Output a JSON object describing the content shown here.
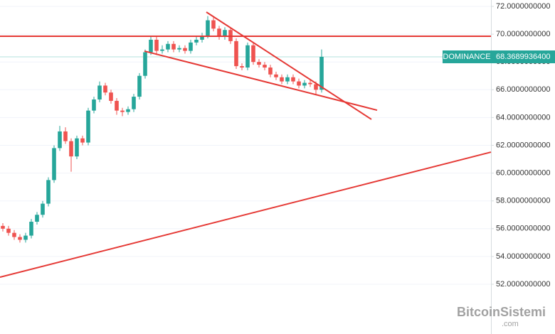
{
  "chart_data": {
    "type": "candlestick",
    "categories": [
      null,
      null,
      null,
      null,
      null,
      null,
      null,
      null,
      null,
      null,
      null,
      null,
      null,
      null,
      null,
      null,
      null,
      null,
      null,
      null,
      null,
      null,
      null,
      null,
      null,
      null,
      null,
      null,
      null,
      null,
      null,
      null,
      null,
      null,
      null,
      null,
      null,
      null,
      null,
      null,
      null,
      null,
      null,
      null,
      null,
      null,
      null,
      null,
      null,
      null,
      null,
      null,
      null,
      null,
      null,
      null,
      null
    ],
    "open": [
      56.2,
      56.0,
      55.7,
      55.4,
      55.2,
      55.5,
      56.5,
      57.0,
      57.8,
      59.5,
      61.8,
      63.0,
      62.3,
      61.2,
      62.5,
      62.2,
      64.5,
      65.3,
      66.3,
      65.8,
      65.2,
      64.5,
      64.4,
      64.6,
      65.5,
      67.0,
      68.7,
      69.6,
      68.8,
      68.9,
      69.3,
      68.9,
      69.0,
      68.8,
      69.4,
      69.6,
      69.9,
      71.0,
      70.4,
      69.8,
      70.3,
      69.5,
      67.7,
      67.6,
      69.2,
      68.0,
      67.8,
      67.6,
      67.1,
      66.9,
      66.6,
      66.9,
      66.6,
      66.3,
      66.5,
      66.4,
      66.0
    ],
    "high": [
      56.4,
      56.2,
      55.9,
      55.6,
      55.7,
      56.7,
      57.2,
      58.0,
      59.7,
      62.0,
      63.4,
      63.3,
      62.5,
      62.7,
      62.7,
      64.7,
      65.5,
      66.6,
      66.5,
      66.0,
      65.4,
      64.7,
      64.8,
      65.7,
      67.2,
      68.9,
      69.9,
      69.8,
      69.2,
      69.5,
      69.5,
      69.2,
      69.2,
      69.6,
      69.8,
      70.1,
      71.3,
      71.2,
      70.6,
      70.5,
      70.5,
      69.7,
      67.9,
      69.4,
      69.4,
      68.2,
      68.0,
      67.8,
      67.3,
      67.1,
      67.1,
      67.1,
      66.8,
      66.7,
      66.7,
      66.6,
      68.9
    ],
    "low": [
      55.8,
      55.5,
      55.2,
      55.0,
      55.0,
      55.3,
      56.3,
      56.8,
      57.6,
      59.3,
      61.6,
      62.1,
      60.1,
      61.0,
      62.0,
      62.0,
      64.3,
      65.1,
      65.6,
      65.0,
      64.2,
      64.1,
      64.2,
      64.4,
      65.3,
      66.8,
      68.5,
      68.5,
      68.6,
      68.7,
      68.7,
      68.7,
      68.6,
      68.6,
      69.2,
      69.4,
      69.7,
      70.2,
      69.6,
      69.6,
      69.3,
      67.5,
      67.4,
      67.4,
      67.8,
      67.6,
      67.4,
      66.9,
      66.7,
      66.4,
      66.4,
      66.4,
      66.1,
      66.1,
      66.2,
      65.6,
      65.8
    ],
    "close": [
      56.0,
      55.7,
      55.4,
      55.2,
      55.5,
      56.5,
      57.0,
      57.8,
      59.5,
      61.8,
      63.0,
      62.3,
      61.2,
      62.5,
      62.2,
      64.5,
      65.3,
      66.3,
      65.8,
      65.2,
      64.5,
      64.4,
      64.6,
      65.5,
      67.0,
      68.7,
      69.6,
      68.8,
      68.9,
      69.3,
      68.9,
      69.0,
      68.8,
      69.4,
      69.6,
      69.9,
      71.0,
      70.4,
      69.8,
      70.3,
      69.5,
      67.7,
      67.6,
      69.2,
      68.0,
      67.8,
      67.6,
      67.1,
      66.9,
      66.6,
      66.9,
      66.6,
      66.3,
      66.5,
      66.4,
      66.0,
      68.36899364
    ],
    "up_color": "#26a69a",
    "down_color": "#ef5350",
    "xlim": [
      -0.5,
      85.75
    ],
    "ylim": [
      48.42,
      72.46
    ],
    "yticks": [
      {
        "value": 52,
        "label": "52.0000000000"
      },
      {
        "value": 54,
        "label": "54.0000000000"
      },
      {
        "value": 56,
        "label": "56.0000000000"
      },
      {
        "value": 58,
        "label": "58.0000000000"
      },
      {
        "value": 60,
        "label": "60.0000000000"
      },
      {
        "value": 62,
        "label": "62.0000000000"
      },
      {
        "value": 64,
        "label": "64.0000000000"
      },
      {
        "value": 66,
        "label": "66.0000000000"
      },
      {
        "value": 68,
        "label": "68.0000000000"
      },
      {
        "value": 70,
        "label": "70.0000000000"
      },
      {
        "value": 72,
        "label": "72.0000000000"
      }
    ],
    "grid": true,
    "last_price": {
      "name": "DOMINANCE",
      "value": 68.36899364,
      "label": "68.3689936400",
      "color": "#26a69a"
    },
    "lines": [
      {
        "x": [
          -0.5,
          85.75
        ],
        "y": [
          69.85,
          69.85
        ],
        "color": "#e53935"
      },
      {
        "x": [
          35.75,
          64.75
        ],
        "y": [
          71.59,
          63.87
        ],
        "color": "#e53935"
      },
      {
        "x": [
          24.875,
          65.75
        ],
        "y": [
          68.78,
          64.53
        ],
        "color": "#e53935"
      },
      {
        "x": [
          -0.5,
          85.75
        ],
        "y": [
          52.51,
          61.51
        ],
        "color": "#e53935"
      }
    ],
    "watermark": {
      "text": "BitcoinSistemi",
      "suffix": ".com"
    }
  }
}
